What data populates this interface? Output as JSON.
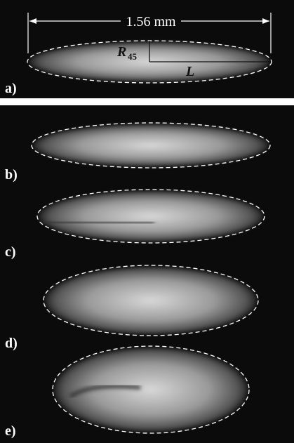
{
  "panel_a": {
    "scale_label": "1.56 mm",
    "radius_label": "R",
    "radius_subscript": "45",
    "length_label": "L",
    "label": "a)"
  },
  "panels": [
    {
      "label": "b)"
    },
    {
      "label": "c)"
    },
    {
      "label": "d)"
    },
    {
      "label": "e)"
    }
  ]
}
